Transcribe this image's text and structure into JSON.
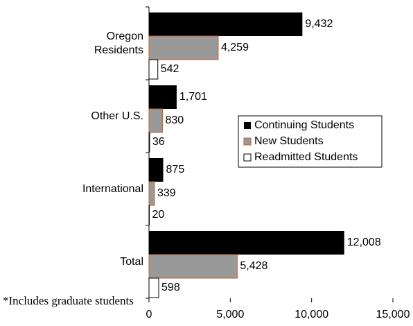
{
  "chart_data": {
    "type": "bar",
    "orientation": "horizontal",
    "categories": [
      "Oregon Residents",
      "Other U.S.",
      "International",
      "Total"
    ],
    "series": [
      {
        "name": "Continuing Students",
        "color": "#000000",
        "values": [
          9432,
          1701,
          875,
          12008
        ],
        "value_labels": [
          "9,432",
          "1,701",
          "875",
          "12,008"
        ]
      },
      {
        "name": "New Students",
        "color": "#999999",
        "edge": "#c0642a",
        "values": [
          4259,
          830,
          339,
          5428
        ],
        "value_labels": [
          "4,259",
          "830",
          "339",
          "5,428"
        ]
      },
      {
        "name": "Readmitted Students",
        "color": "#ffffff",
        "edge": "#000000",
        "values": [
          542,
          36,
          20,
          598
        ],
        "value_labels": [
          "542",
          "36",
          "20",
          "598"
        ]
      }
    ],
    "xlim": [
      0,
      15000
    ],
    "xticks": [
      0,
      {
        "value": 5000,
        "label": "5,000"
      },
      {
        "value": 10000,
        "label": "10,000"
      },
      {
        "value": 15000,
        "label": "15,000"
      }
    ],
    "footnote": "*Includes graduate students"
  }
}
